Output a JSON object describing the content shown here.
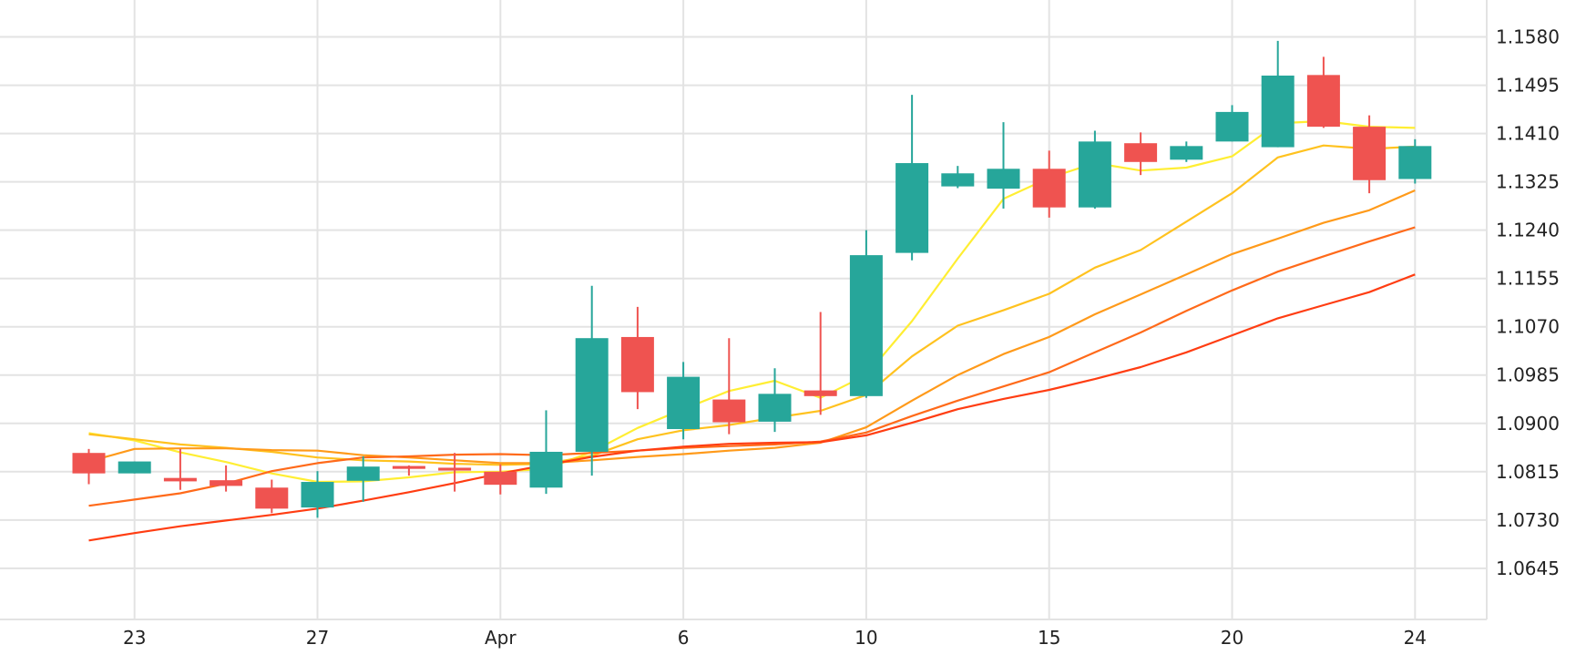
{
  "colors": {
    "up": "#26a69a",
    "down": "#ef5350",
    "grid": "#e3e3e3",
    "text": "#222222",
    "background": "#ffffff"
  },
  "chart_data": {
    "type": "candlestick",
    "title": "",
    "xlabel": "",
    "ylabel": "",
    "y_axis_position": "right",
    "grid": true,
    "ylim": [
      1.0555,
      1.1645
    ],
    "y_ticks": [
      "1.1580",
      "1.1495",
      "1.1410",
      "1.1325",
      "1.1240",
      "1.1155",
      "1.1070",
      "1.0985",
      "1.0900",
      "1.0815",
      "1.0730",
      "1.0645"
    ],
    "x_ticks": [
      {
        "label": "23",
        "at": 1
      },
      {
        "label": "27",
        "at": 5
      },
      {
        "label": "Apr",
        "at": 9
      },
      {
        "label": "6",
        "at": 13
      },
      {
        "label": "10",
        "at": 17
      },
      {
        "label": "15",
        "at": 21
      },
      {
        "label": "20",
        "at": 25
      },
      {
        "label": "24",
        "at": 29
      }
    ],
    "candles": [
      {
        "o": 1.0848,
        "h": 1.0855,
        "l": 1.0793,
        "c": 1.0812
      },
      {
        "o": 1.0812,
        "h": 1.0833,
        "l": 1.0812,
        "c": 1.0833
      },
      {
        "o": 1.0804,
        "h": 1.0855,
        "l": 1.0783,
        "c": 1.0798
      },
      {
        "o": 1.08,
        "h": 1.0826,
        "l": 1.078,
        "c": 1.079
      },
      {
        "o": 1.0787,
        "h": 1.0801,
        "l": 1.0742,
        "c": 1.075
      },
      {
        "o": 1.0752,
        "h": 1.0816,
        "l": 1.0734,
        "c": 1.0797
      },
      {
        "o": 1.0799,
        "h": 1.0842,
        "l": 1.0762,
        "c": 1.0824
      },
      {
        "o": 1.0825,
        "h": 1.0826,
        "l": 1.0808,
        "c": 1.082
      },
      {
        "o": 1.0822,
        "h": 1.0848,
        "l": 1.078,
        "c": 1.0817
      },
      {
        "o": 1.0815,
        "h": 1.0828,
        "l": 1.0775,
        "c": 1.0792
      },
      {
        "o": 1.0787,
        "h": 1.0923,
        "l": 1.0776,
        "c": 1.085
      },
      {
        "o": 1.085,
        "h": 1.1142,
        "l": 1.0808,
        "c": 1.105
      },
      {
        "o": 1.1052,
        "h": 1.1105,
        "l": 1.0925,
        "c": 1.0955
      },
      {
        "o": 1.089,
        "h": 1.1008,
        "l": 1.0872,
        "c": 1.0982
      },
      {
        "o": 1.0942,
        "h": 1.105,
        "l": 1.0881,
        "c": 1.0902
      },
      {
        "o": 1.0903,
        "h": 1.0997,
        "l": 1.0885,
        "c": 1.0952
      },
      {
        "o": 1.0958,
        "h": 1.1096,
        "l": 1.0915,
        "c": 1.0948
      },
      {
        "o": 1.0948,
        "h": 1.124,
        "l": 1.0945,
        "c": 1.1196
      },
      {
        "o": 1.12,
        "h": 1.1478,
        "l": 1.1187,
        "c": 1.1358
      },
      {
        "o": 1.1317,
        "h": 1.1353,
        "l": 1.1314,
        "c": 1.134
      },
      {
        "o": 1.1313,
        "h": 1.143,
        "l": 1.1278,
        "c": 1.1348
      },
      {
        "o": 1.1348,
        "h": 1.138,
        "l": 1.1262,
        "c": 1.128
      },
      {
        "o": 1.128,
        "h": 1.1415,
        "l": 1.1278,
        "c": 1.1396
      },
      {
        "o": 1.1393,
        "h": 1.1412,
        "l": 1.1337,
        "c": 1.136
      },
      {
        "o": 1.1364,
        "h": 1.1396,
        "l": 1.136,
        "c": 1.1388
      },
      {
        "o": 1.1396,
        "h": 1.146,
        "l": 1.1396,
        "c": 1.1448
      },
      {
        "o": 1.1386,
        "h": 1.1573,
        "l": 1.1386,
        "c": 1.1512
      },
      {
        "o": 1.1513,
        "h": 1.1545,
        "l": 1.142,
        "c": 1.1422
      },
      {
        "o": 1.1422,
        "h": 1.1442,
        "l": 1.1305,
        "c": 1.1328
      },
      {
        "o": 1.133,
        "h": 1.14,
        "l": 1.1322,
        "c": 1.1388
      }
    ],
    "series": [
      {
        "color": "#ffee33",
        "values": [
          1.0883,
          1.087,
          1.0849,
          1.0832,
          1.0812,
          1.0797,
          1.0798,
          1.0805,
          1.0814,
          1.0815,
          1.082,
          1.085,
          1.0892,
          1.0925,
          1.0957,
          1.0975,
          1.0945,
          1.0985,
          1.108,
          1.119,
          1.1295,
          1.1332,
          1.1358,
          1.1345,
          1.135,
          1.137,
          1.1428,
          1.1432,
          1.1422,
          1.142
        ]
      },
      {
        "color": "#ffc21f",
        "values": [
          1.0881,
          1.0872,
          1.0863,
          1.0857,
          1.085,
          1.084,
          1.0835,
          1.0833,
          1.0829,
          1.0827,
          1.0829,
          1.0843,
          1.0872,
          1.0888,
          1.0897,
          1.091,
          1.0922,
          1.095,
          1.1018,
          1.1072,
          1.1099,
          1.1128,
          1.1174,
          1.1205,
          1.1255,
          1.1305,
          1.1368,
          1.1389,
          1.1383,
          1.1387
        ]
      },
      {
        "color": "#ff9a1a",
        "values": [
          1.0833,
          1.0855,
          1.0856,
          1.0856,
          1.0853,
          1.0852,
          1.0844,
          1.084,
          1.0835,
          1.083,
          1.083,
          1.0835,
          1.0841,
          1.0846,
          1.0852,
          1.0857,
          1.0866,
          1.0893,
          1.094,
          1.0985,
          1.1022,
          1.1052,
          1.1092,
          1.1127,
          1.1162,
          1.1198,
          1.1225,
          1.1253,
          1.1275,
          1.131
        ]
      },
      {
        "color": "#ff6a1a",
        "values": [
          1.0755,
          1.0766,
          1.0777,
          1.0794,
          1.0816,
          1.083,
          1.084,
          1.0842,
          1.0845,
          1.0846,
          1.0844,
          1.0848,
          1.0852,
          1.0857,
          1.086,
          1.0863,
          1.0868,
          1.0884,
          1.0913,
          1.094,
          1.0965,
          1.099,
          1.1025,
          1.106,
          1.1098,
          1.1134,
          1.1167,
          1.1194,
          1.122,
          1.1245
        ]
      },
      {
        "color": "#ff3d12",
        "values": [
          1.0694,
          1.0707,
          1.0719,
          1.0729,
          1.0739,
          1.075,
          1.0764,
          1.0779,
          1.0795,
          1.0812,
          1.0827,
          1.0841,
          1.0852,
          1.0859,
          1.0864,
          1.0866,
          1.0867,
          1.0879,
          1.0901,
          1.0925,
          1.0943,
          1.0959,
          1.0978,
          1.0999,
          1.1025,
          1.1055,
          1.1085,
          1.1108,
          1.1131,
          1.1162
        ]
      }
    ]
  }
}
